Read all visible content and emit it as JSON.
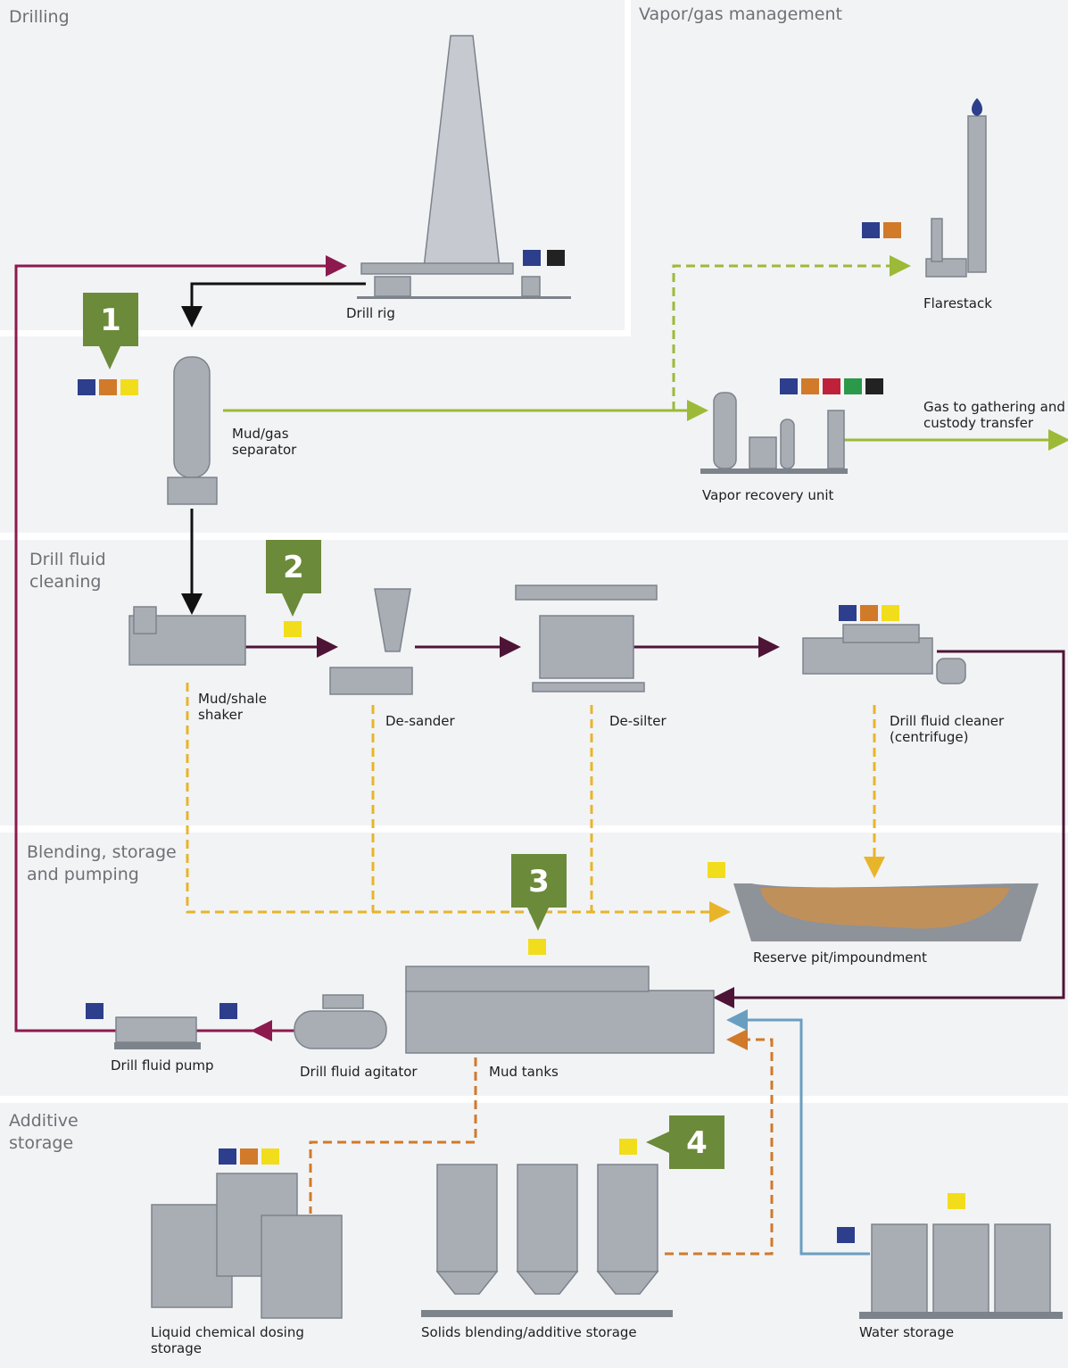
{
  "sections": [
    {
      "lines": [
        "Drilling"
      ]
    },
    {
      "lines": [
        "Vapor/gas management"
      ]
    },
    {
      "lines": [
        "Drill fluid",
        "cleaning"
      ]
    },
    {
      "lines": [
        "Blending, storage",
        "and pumping"
      ]
    },
    {
      "lines": [
        "Additive",
        "storage"
      ]
    }
  ],
  "equipment": [
    {
      "lines": [
        "Drill rig"
      ]
    },
    {
      "lines": [
        "Flarestack"
      ]
    },
    {
      "lines": [
        "Mud/gas",
        "separator"
      ]
    },
    {
      "lines": [
        "Vapor recovery unit"
      ]
    },
    {
      "lines": [
        "Gas to gathering and",
        "custody transfer"
      ]
    },
    {
      "lines": [
        "Mud/shale",
        "shaker"
      ]
    },
    {
      "lines": [
        "De-sander"
      ]
    },
    {
      "lines": [
        "De-silter"
      ]
    },
    {
      "lines": [
        "Drill fluid cleaner",
        "(centrifuge)"
      ]
    },
    {
      "lines": [
        "Reserve pit/impoundment"
      ]
    },
    {
      "lines": [
        "Drill fluid pump"
      ]
    },
    {
      "lines": [
        "Drill fluid agitator"
      ]
    },
    {
      "lines": [
        "Mud tanks"
      ]
    },
    {
      "lines": [
        "Liquid chemical dosing",
        "storage"
      ]
    },
    {
      "lines": [
        "Solids blending/additive storage"
      ]
    },
    {
      "lines": [
        "Water storage"
      ]
    }
  ],
  "callouts": [
    "1",
    "2",
    "3",
    "4"
  ]
}
